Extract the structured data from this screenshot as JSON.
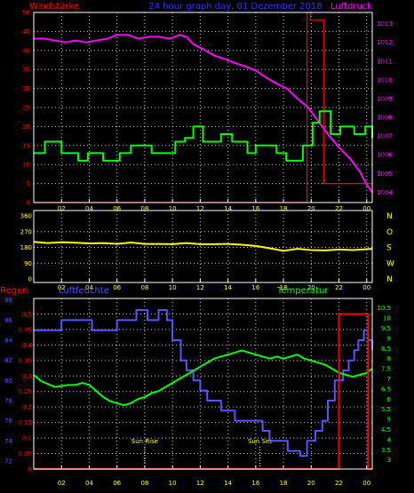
{
  "colors": {
    "frame": "#ffffff",
    "grid": "#ffffff",
    "x_tick": "#ffff00",
    "wind_speed": "#00ff00",
    "pressure": "#ff00ff",
    "wind_direction": "#ffff00",
    "rain": "#ff0000",
    "humidity": "#5555ff",
    "temperature": "#00ff00"
  },
  "chart_data": [
    {
      "type": "line",
      "title": "24 hour graph day, 01 Dezember 2018",
      "x_ticks": [
        "02",
        "04",
        "06",
        "08",
        "10",
        "12",
        "14",
        "16",
        "18",
        "20",
        "22",
        "00"
      ],
      "y_left": {
        "label": "Windstärke",
        "ticks": [
          0,
          5,
          10,
          15,
          20,
          25,
          30,
          35,
          40,
          45,
          50
        ],
        "range": [
          0,
          50
        ]
      },
      "y_right": {
        "label": "Luftdruck",
        "ticks": [
          1004,
          1005,
          1006,
          1007,
          1008,
          1009,
          1010,
          1011,
          1012,
          1013
        ],
        "range": [
          1003.45,
          1013.6
        ]
      },
      "series": [
        {
          "name": "Windstärke",
          "axis": "left",
          "step": true,
          "x": [
            0,
            0.8,
            2.0,
            3.2,
            3.9,
            5.0,
            6.2,
            7.0,
            8.5,
            10.2,
            10.9,
            11.5,
            12.2,
            13.5,
            14.3,
            15.4,
            16.0,
            17.5,
            18.2,
            19.4,
            20.1,
            20.6,
            21.4,
            22.1,
            23.1,
            23.9,
            24.4
          ],
          "y": [
            13,
            16,
            13,
            11,
            13,
            11,
            13,
            15,
            13,
            16,
            17,
            20,
            16,
            18,
            16,
            13,
            15,
            13,
            11,
            15,
            21,
            24,
            18,
            20,
            18,
            20,
            17
          ]
        },
        {
          "name": "Luftdruck",
          "axis": "right",
          "x": [
            0,
            0.8,
            1.5,
            2.3,
            3.0,
            3.8,
            4.5,
            5.3,
            6.0,
            6.8,
            7.5,
            8.3,
            9.0,
            9.8,
            10.5,
            11.0,
            11.5,
            12.3,
            13.0,
            13.8,
            14.5,
            15.3,
            16.0,
            16.8,
            17.5,
            18.3,
            19.0,
            19.8,
            20.5,
            21.3,
            22.0,
            22.8,
            23.5,
            24.0,
            24.4
          ],
          "y": [
            1012.2,
            1012.2,
            1012.1,
            1012.0,
            1012.1,
            1012.0,
            1012.1,
            1012.2,
            1012.4,
            1012.4,
            1012.2,
            1012.3,
            1012.3,
            1012.2,
            1012.4,
            1012.3,
            1011.9,
            1011.6,
            1011.3,
            1011.1,
            1010.9,
            1010.7,
            1010.5,
            1010.1,
            1009.8,
            1009.5,
            1009.0,
            1008.5,
            1007.8,
            1007.0,
            1006.4,
            1005.8,
            1005.1,
            1004.4,
            1004.0
          ]
        },
        {
          "name": "Rain (Windstärke axis)",
          "axis": "left",
          "step": true,
          "x": [
            0,
            19.6,
            19.7,
            19.95,
            20.9,
            24.4
          ],
          "y": [
            0,
            0,
            50,
            48,
            5,
            5
          ]
        }
      ]
    },
    {
      "type": "line",
      "x_ticks": [
        "02",
        "04",
        "06",
        "08",
        "10",
        "12",
        "14",
        "16",
        "18",
        "20",
        "22",
        "00"
      ],
      "y_left": {
        "ticks": [
          0,
          90,
          180,
          270,
          360
        ],
        "range": [
          0,
          360
        ]
      },
      "y_right": {
        "ticks": [
          "N",
          "W",
          "S",
          "O",
          "N"
        ]
      },
      "series": [
        {
          "name": "Windrichtung",
          "x": [
            0,
            1.0,
            2.0,
            3.0,
            4.0,
            5.0,
            6.0,
            7.0,
            8.0,
            9.0,
            10.0,
            11.0,
            12.0,
            13.0,
            14.0,
            15.0,
            16.0,
            17.0,
            18.0,
            19.0,
            20.0,
            21.0,
            22.0,
            23.0,
            24.4
          ],
          "y": [
            212,
            205,
            210,
            207,
            203,
            205,
            200,
            208,
            200,
            200,
            198,
            205,
            198,
            198,
            200,
            195,
            188,
            175,
            160,
            172,
            165,
            163,
            168,
            165,
            172
          ]
        }
      ]
    },
    {
      "type": "line",
      "legend": [
        "Regen",
        "Luftfeuchte",
        "Temperatur"
      ],
      "x_ticks": [
        "02",
        "04",
        "06",
        "08",
        "10",
        "12",
        "14",
        "16",
        "18",
        "20",
        "22",
        "00"
      ],
      "annotations": [
        {
          "text": "Sun Rise",
          "x": 8.0
        },
        {
          "text": "Sun Set",
          "x": 16.3
        }
      ],
      "y_axes": [
        {
          "name": "Regen",
          "ticks": [
            0,
            0.05,
            0.1,
            0.15,
            0.2,
            0.25,
            0.3,
            0.35,
            0.4,
            0.45,
            0.5
          ],
          "range": [
            0,
            0.55
          ]
        },
        {
          "name": "Luftfeuchte",
          "ticks": [
            72,
            74,
            76,
            78,
            80,
            82,
            84,
            86,
            88
          ],
          "range": [
            71.2,
            88.15
          ]
        },
        {
          "name": "Temperatur",
          "ticks": [
            3,
            3.5,
            4,
            4.5,
            5,
            5.5,
            6,
            6.5,
            7,
            7.5,
            8,
            8.5,
            9,
            9.5,
            10,
            10.5
          ],
          "range": [
            2.55,
            10.97
          ]
        }
      ],
      "series": [
        {
          "name": "Regen",
          "axis": "Regen",
          "step": true,
          "x": [
            0,
            21.9,
            22.0,
            24.0,
            24.1,
            24.4
          ],
          "y": [
            0,
            0,
            0.5,
            0.5,
            0,
            0
          ]
        },
        {
          "name": "Luftfeuchte",
          "axis": "Luftfeuchte",
          "step": true,
          "x": [
            0,
            2.0,
            4.2,
            6.0,
            7.4,
            8.2,
            9.0,
            9.6,
            10.0,
            10.6,
            11.0,
            11.5,
            12.0,
            12.5,
            13.5,
            14.5,
            15.5,
            16.5,
            17.0,
            17.7,
            18.3,
            19.2,
            19.7,
            20.3,
            20.8,
            21.2,
            21.7,
            22.3,
            22.7,
            23.1,
            23.4,
            23.8,
            24.1,
            24.4
          ],
          "y": [
            85,
            86,
            85,
            86,
            87,
            86,
            87,
            86,
            84,
            82,
            81,
            80,
            79,
            78,
            77,
            76,
            76,
            75,
            74,
            74,
            73,
            72.5,
            74,
            75,
            76,
            78,
            80,
            81,
            82,
            83,
            84,
            85,
            84,
            83
          ]
        },
        {
          "name": "Temperatur",
          "axis": "Temperatur",
          "x": [
            0,
            0.5,
            1.0,
            1.5,
            2.0,
            2.5,
            3.0,
            3.5,
            4.0,
            4.5,
            5.0,
            5.5,
            6.0,
            6.5,
            7.0,
            7.5,
            8.0,
            8.5,
            9.0,
            9.5,
            10.0,
            10.5,
            11.0,
            11.5,
            12.0,
            12.5,
            13.0,
            13.5,
            14.0,
            14.5,
            15.0,
            15.5,
            16.0,
            16.5,
            17.0,
            17.5,
            18.0,
            18.5,
            19.0,
            19.5,
            20.0,
            20.5,
            21.0,
            21.5,
            22.0,
            22.5,
            23.0,
            23.5,
            24.0,
            24.4
          ],
          "y": [
            7.2,
            6.9,
            6.75,
            6.6,
            6.65,
            6.7,
            6.7,
            6.8,
            6.7,
            6.4,
            6.1,
            5.9,
            5.8,
            5.7,
            5.8,
            6.0,
            6.1,
            6.3,
            6.4,
            6.6,
            6.8,
            7.0,
            7.2,
            7.4,
            7.6,
            7.8,
            8.0,
            8.1,
            8.2,
            8.3,
            8.4,
            8.3,
            8.2,
            8.1,
            8.0,
            8.1,
            8.0,
            8.1,
            8.2,
            8.0,
            7.9,
            7.8,
            7.7,
            7.5,
            7.3,
            7.2,
            7.1,
            7.2,
            7.3,
            7.5
          ]
        }
      ]
    }
  ]
}
